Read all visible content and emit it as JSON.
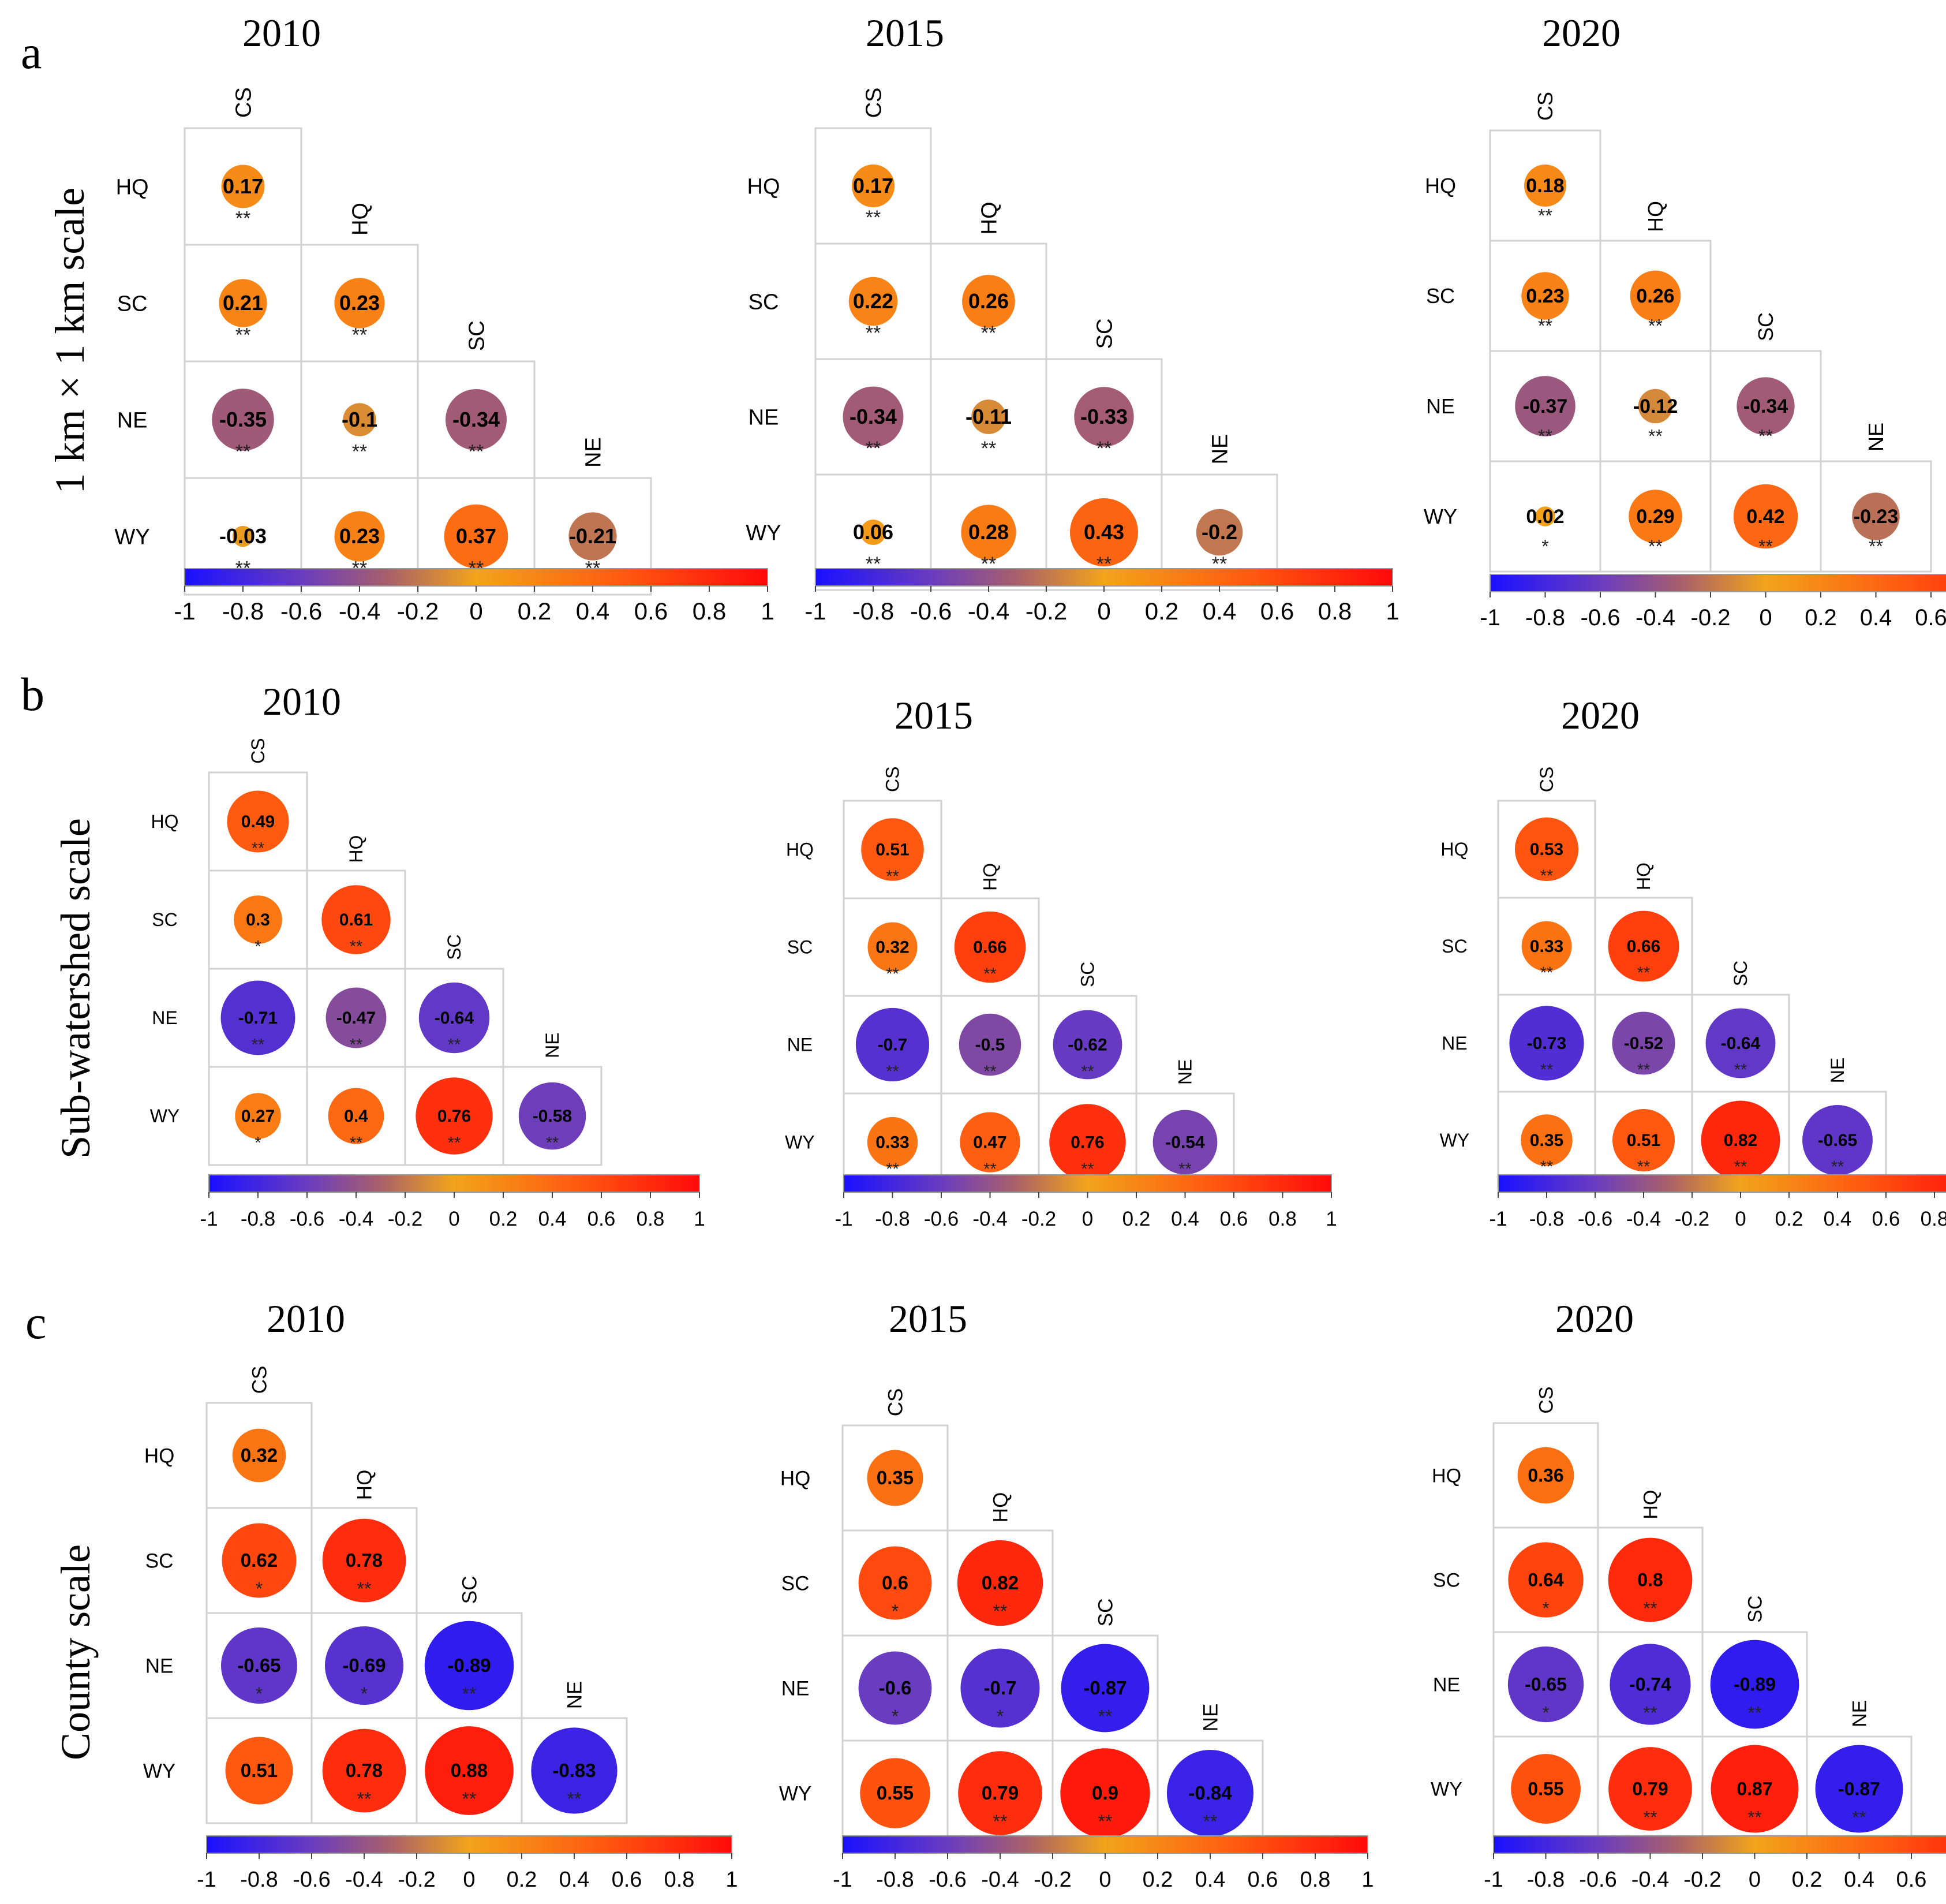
{
  "figure": {
    "row_titles": [
      "1 km × 1 km scale",
      "Sub-watershed scale",
      "County scale"
    ],
    "panel_letters": [
      "a",
      "b",
      "c"
    ],
    "colorbar_ticks": [
      "-1",
      "-0.8",
      "-0.6",
      "-0.4",
      "-0.2",
      "0",
      "0.2",
      "0.4",
      "0.6",
      "0.8",
      "1"
    ],
    "colors": {
      "neg1": "#1a10ff",
      "neg06": "#6a3cc0",
      "neg03": "#a9606a",
      "zero": "#f2a41a",
      "pos05": "#ff5a10",
      "pos1": "#ff0a0a",
      "grid": "#d2d2d2",
      "text": "#000000"
    }
  },
  "chart_data": [
    {
      "type": "heatmap",
      "scale": "1 km × 1 km scale",
      "panel": "a",
      "title": "2010",
      "variables": [
        "CS",
        "HQ",
        "SC",
        "NE",
        "WY"
      ],
      "cells": [
        {
          "row": "HQ",
          "col": "CS",
          "r": 0.17,
          "sig": "**"
        },
        {
          "row": "SC",
          "col": "CS",
          "r": 0.21,
          "sig": "**"
        },
        {
          "row": "SC",
          "col": "HQ",
          "r": 0.23,
          "sig": "**"
        },
        {
          "row": "NE",
          "col": "CS",
          "r": -0.35,
          "sig": "**"
        },
        {
          "row": "NE",
          "col": "HQ",
          "r": -0.1,
          "sig": "**"
        },
        {
          "row": "NE",
          "col": "SC",
          "r": -0.34,
          "sig": "**"
        },
        {
          "row": "WY",
          "col": "CS",
          "r": -0.03,
          "sig": "**"
        },
        {
          "row": "WY",
          "col": "HQ",
          "r": 0.23,
          "sig": "**"
        },
        {
          "row": "WY",
          "col": "SC",
          "r": 0.37,
          "sig": "**"
        },
        {
          "row": "WY",
          "col": "NE",
          "r": -0.21,
          "sig": "**"
        }
      ]
    },
    {
      "type": "heatmap",
      "scale": "1 km × 1 km scale",
      "panel": "a",
      "title": "2015",
      "variables": [
        "CS",
        "HQ",
        "SC",
        "NE",
        "WY"
      ],
      "cells": [
        {
          "row": "HQ",
          "col": "CS",
          "r": 0.17,
          "sig": "**"
        },
        {
          "row": "SC",
          "col": "CS",
          "r": 0.22,
          "sig": "**"
        },
        {
          "row": "SC",
          "col": "HQ",
          "r": 0.26,
          "sig": "**"
        },
        {
          "row": "NE",
          "col": "CS",
          "r": -0.34,
          "sig": "**"
        },
        {
          "row": "NE",
          "col": "HQ",
          "r": -0.11,
          "sig": "**"
        },
        {
          "row": "NE",
          "col": "SC",
          "r": -0.33,
          "sig": "**"
        },
        {
          "row": "WY",
          "col": "CS",
          "r": 0.06,
          "sig": "**"
        },
        {
          "row": "WY",
          "col": "HQ",
          "r": 0.28,
          "sig": "**"
        },
        {
          "row": "WY",
          "col": "SC",
          "r": 0.43,
          "sig": "**"
        },
        {
          "row": "WY",
          "col": "NE",
          "r": -0.2,
          "sig": "**"
        }
      ]
    },
    {
      "type": "heatmap",
      "scale": "1 km × 1 km scale",
      "panel": "a",
      "title": "2020",
      "variables": [
        "CS",
        "HQ",
        "SC",
        "NE",
        "WY"
      ],
      "cells": [
        {
          "row": "HQ",
          "col": "CS",
          "r": 0.18,
          "sig": "**"
        },
        {
          "row": "SC",
          "col": "CS",
          "r": 0.23,
          "sig": "**"
        },
        {
          "row": "SC",
          "col": "HQ",
          "r": 0.26,
          "sig": "**"
        },
        {
          "row": "NE",
          "col": "CS",
          "r": -0.37,
          "sig": "**"
        },
        {
          "row": "NE",
          "col": "HQ",
          "r": -0.12,
          "sig": "**"
        },
        {
          "row": "NE",
          "col": "SC",
          "r": -0.34,
          "sig": "**"
        },
        {
          "row": "WY",
          "col": "CS",
          "r": 0.02,
          "sig": "*"
        },
        {
          "row": "WY",
          "col": "HQ",
          "r": 0.29,
          "sig": "**"
        },
        {
          "row": "WY",
          "col": "SC",
          "r": 0.42,
          "sig": "**"
        },
        {
          "row": "WY",
          "col": "NE",
          "r": -0.23,
          "sig": "**"
        }
      ]
    },
    {
      "type": "heatmap",
      "scale": "Sub-watershed scale",
      "panel": "b",
      "title": "2010",
      "variables": [
        "CS",
        "HQ",
        "SC",
        "NE",
        "WY"
      ],
      "cells": [
        {
          "row": "HQ",
          "col": "CS",
          "r": 0.49,
          "sig": "**"
        },
        {
          "row": "SC",
          "col": "CS",
          "r": 0.3,
          "sig": "*"
        },
        {
          "row": "SC",
          "col": "HQ",
          "r": 0.61,
          "sig": "**"
        },
        {
          "row": "NE",
          "col": "CS",
          "r": -0.71,
          "sig": "**"
        },
        {
          "row": "NE",
          "col": "HQ",
          "r": -0.47,
          "sig": "**"
        },
        {
          "row": "NE",
          "col": "SC",
          "r": -0.64,
          "sig": "**"
        },
        {
          "row": "WY",
          "col": "CS",
          "r": 0.27,
          "sig": "*"
        },
        {
          "row": "WY",
          "col": "HQ",
          "r": 0.4,
          "sig": "**"
        },
        {
          "row": "WY",
          "col": "SC",
          "r": 0.76,
          "sig": "**"
        },
        {
          "row": "WY",
          "col": "NE",
          "r": -0.58,
          "sig": "**"
        }
      ]
    },
    {
      "type": "heatmap",
      "scale": "Sub-watershed scale",
      "panel": "b",
      "title": "2015",
      "variables": [
        "CS",
        "HQ",
        "SC",
        "NE",
        "WY"
      ],
      "cells": [
        {
          "row": "HQ",
          "col": "CS",
          "r": 0.51,
          "sig": "**"
        },
        {
          "row": "SC",
          "col": "CS",
          "r": 0.32,
          "sig": "**"
        },
        {
          "row": "SC",
          "col": "HQ",
          "r": 0.66,
          "sig": "**"
        },
        {
          "row": "NE",
          "col": "CS",
          "r": -0.7,
          "sig": "**"
        },
        {
          "row": "NE",
          "col": "HQ",
          "r": -0.5,
          "sig": "**"
        },
        {
          "row": "NE",
          "col": "SC",
          "r": -0.62,
          "sig": "**"
        },
        {
          "row": "WY",
          "col": "CS",
          "r": 0.33,
          "sig": "**"
        },
        {
          "row": "WY",
          "col": "HQ",
          "r": 0.47,
          "sig": "**"
        },
        {
          "row": "WY",
          "col": "SC",
          "r": 0.76,
          "sig": "**"
        },
        {
          "row": "WY",
          "col": "NE",
          "r": -0.54,
          "sig": "**"
        }
      ]
    },
    {
      "type": "heatmap",
      "scale": "Sub-watershed scale",
      "panel": "b",
      "title": "2020",
      "variables": [
        "CS",
        "HQ",
        "SC",
        "NE",
        "WY"
      ],
      "cells": [
        {
          "row": "HQ",
          "col": "CS",
          "r": 0.53,
          "sig": "**"
        },
        {
          "row": "SC",
          "col": "CS",
          "r": 0.33,
          "sig": "**"
        },
        {
          "row": "SC",
          "col": "HQ",
          "r": 0.66,
          "sig": "**"
        },
        {
          "row": "NE",
          "col": "CS",
          "r": -0.73,
          "sig": "**"
        },
        {
          "row": "NE",
          "col": "HQ",
          "r": -0.52,
          "sig": "**"
        },
        {
          "row": "NE",
          "col": "SC",
          "r": -0.64,
          "sig": "**"
        },
        {
          "row": "WY",
          "col": "CS",
          "r": 0.35,
          "sig": "**"
        },
        {
          "row": "WY",
          "col": "HQ",
          "r": 0.51,
          "sig": "**"
        },
        {
          "row": "WY",
          "col": "SC",
          "r": 0.82,
          "sig": "**"
        },
        {
          "row": "WY",
          "col": "NE",
          "r": -0.65,
          "sig": "**"
        }
      ]
    },
    {
      "type": "heatmap",
      "scale": "County scale",
      "panel": "c",
      "title": "2010",
      "variables": [
        "CS",
        "HQ",
        "SC",
        "NE",
        "WY"
      ],
      "cells": [
        {
          "row": "HQ",
          "col": "CS",
          "r": 0.32,
          "sig": ""
        },
        {
          "row": "SC",
          "col": "CS",
          "r": 0.62,
          "sig": "*"
        },
        {
          "row": "SC",
          "col": "HQ",
          "r": 0.78,
          "sig": "**"
        },
        {
          "row": "NE",
          "col": "CS",
          "r": -0.65,
          "sig": "*"
        },
        {
          "row": "NE",
          "col": "HQ",
          "r": -0.69,
          "sig": "*"
        },
        {
          "row": "NE",
          "col": "SC",
          "r": -0.89,
          "sig": "**"
        },
        {
          "row": "WY",
          "col": "CS",
          "r": 0.51,
          "sig": ""
        },
        {
          "row": "WY",
          "col": "HQ",
          "r": 0.78,
          "sig": "**"
        },
        {
          "row": "WY",
          "col": "SC",
          "r": 0.88,
          "sig": "**"
        },
        {
          "row": "WY",
          "col": "NE",
          "r": -0.83,
          "sig": "**"
        }
      ]
    },
    {
      "type": "heatmap",
      "scale": "County scale",
      "panel": "c",
      "title": "2015",
      "variables": [
        "CS",
        "HQ",
        "SC",
        "NE",
        "WY"
      ],
      "cells": [
        {
          "row": "HQ",
          "col": "CS",
          "r": 0.35,
          "sig": ""
        },
        {
          "row": "SC",
          "col": "CS",
          "r": 0.6,
          "sig": "*"
        },
        {
          "row": "SC",
          "col": "HQ",
          "r": 0.82,
          "sig": "**"
        },
        {
          "row": "NE",
          "col": "CS",
          "r": -0.6,
          "sig": "*"
        },
        {
          "row": "NE",
          "col": "HQ",
          "r": -0.7,
          "sig": "*"
        },
        {
          "row": "NE",
          "col": "SC",
          "r": -0.87,
          "sig": "**"
        },
        {
          "row": "WY",
          "col": "CS",
          "r": 0.55,
          "sig": ""
        },
        {
          "row": "WY",
          "col": "HQ",
          "r": 0.79,
          "sig": "**"
        },
        {
          "row": "WY",
          "col": "SC",
          "r": 0.9,
          "sig": "**"
        },
        {
          "row": "WY",
          "col": "NE",
          "r": -0.84,
          "sig": "**"
        }
      ]
    },
    {
      "type": "heatmap",
      "scale": "County scale",
      "panel": "c",
      "title": "2020",
      "variables": [
        "CS",
        "HQ",
        "SC",
        "NE",
        "WY"
      ],
      "cells": [
        {
          "row": "HQ",
          "col": "CS",
          "r": 0.36,
          "sig": ""
        },
        {
          "row": "SC",
          "col": "CS",
          "r": 0.64,
          "sig": "*"
        },
        {
          "row": "SC",
          "col": "HQ",
          "r": 0.8,
          "sig": "**"
        },
        {
          "row": "NE",
          "col": "CS",
          "r": -0.65,
          "sig": "*"
        },
        {
          "row": "NE",
          "col": "HQ",
          "r": -0.74,
          "sig": "**"
        },
        {
          "row": "NE",
          "col": "SC",
          "r": -0.89,
          "sig": "**"
        },
        {
          "row": "WY",
          "col": "CS",
          "r": 0.55,
          "sig": ""
        },
        {
          "row": "WY",
          "col": "HQ",
          "r": 0.79,
          "sig": "**"
        },
        {
          "row": "WY",
          "col": "SC",
          "r": 0.87,
          "sig": "**"
        },
        {
          "row": "WY",
          "col": "NE",
          "r": -0.87,
          "sig": "**"
        }
      ]
    }
  ]
}
